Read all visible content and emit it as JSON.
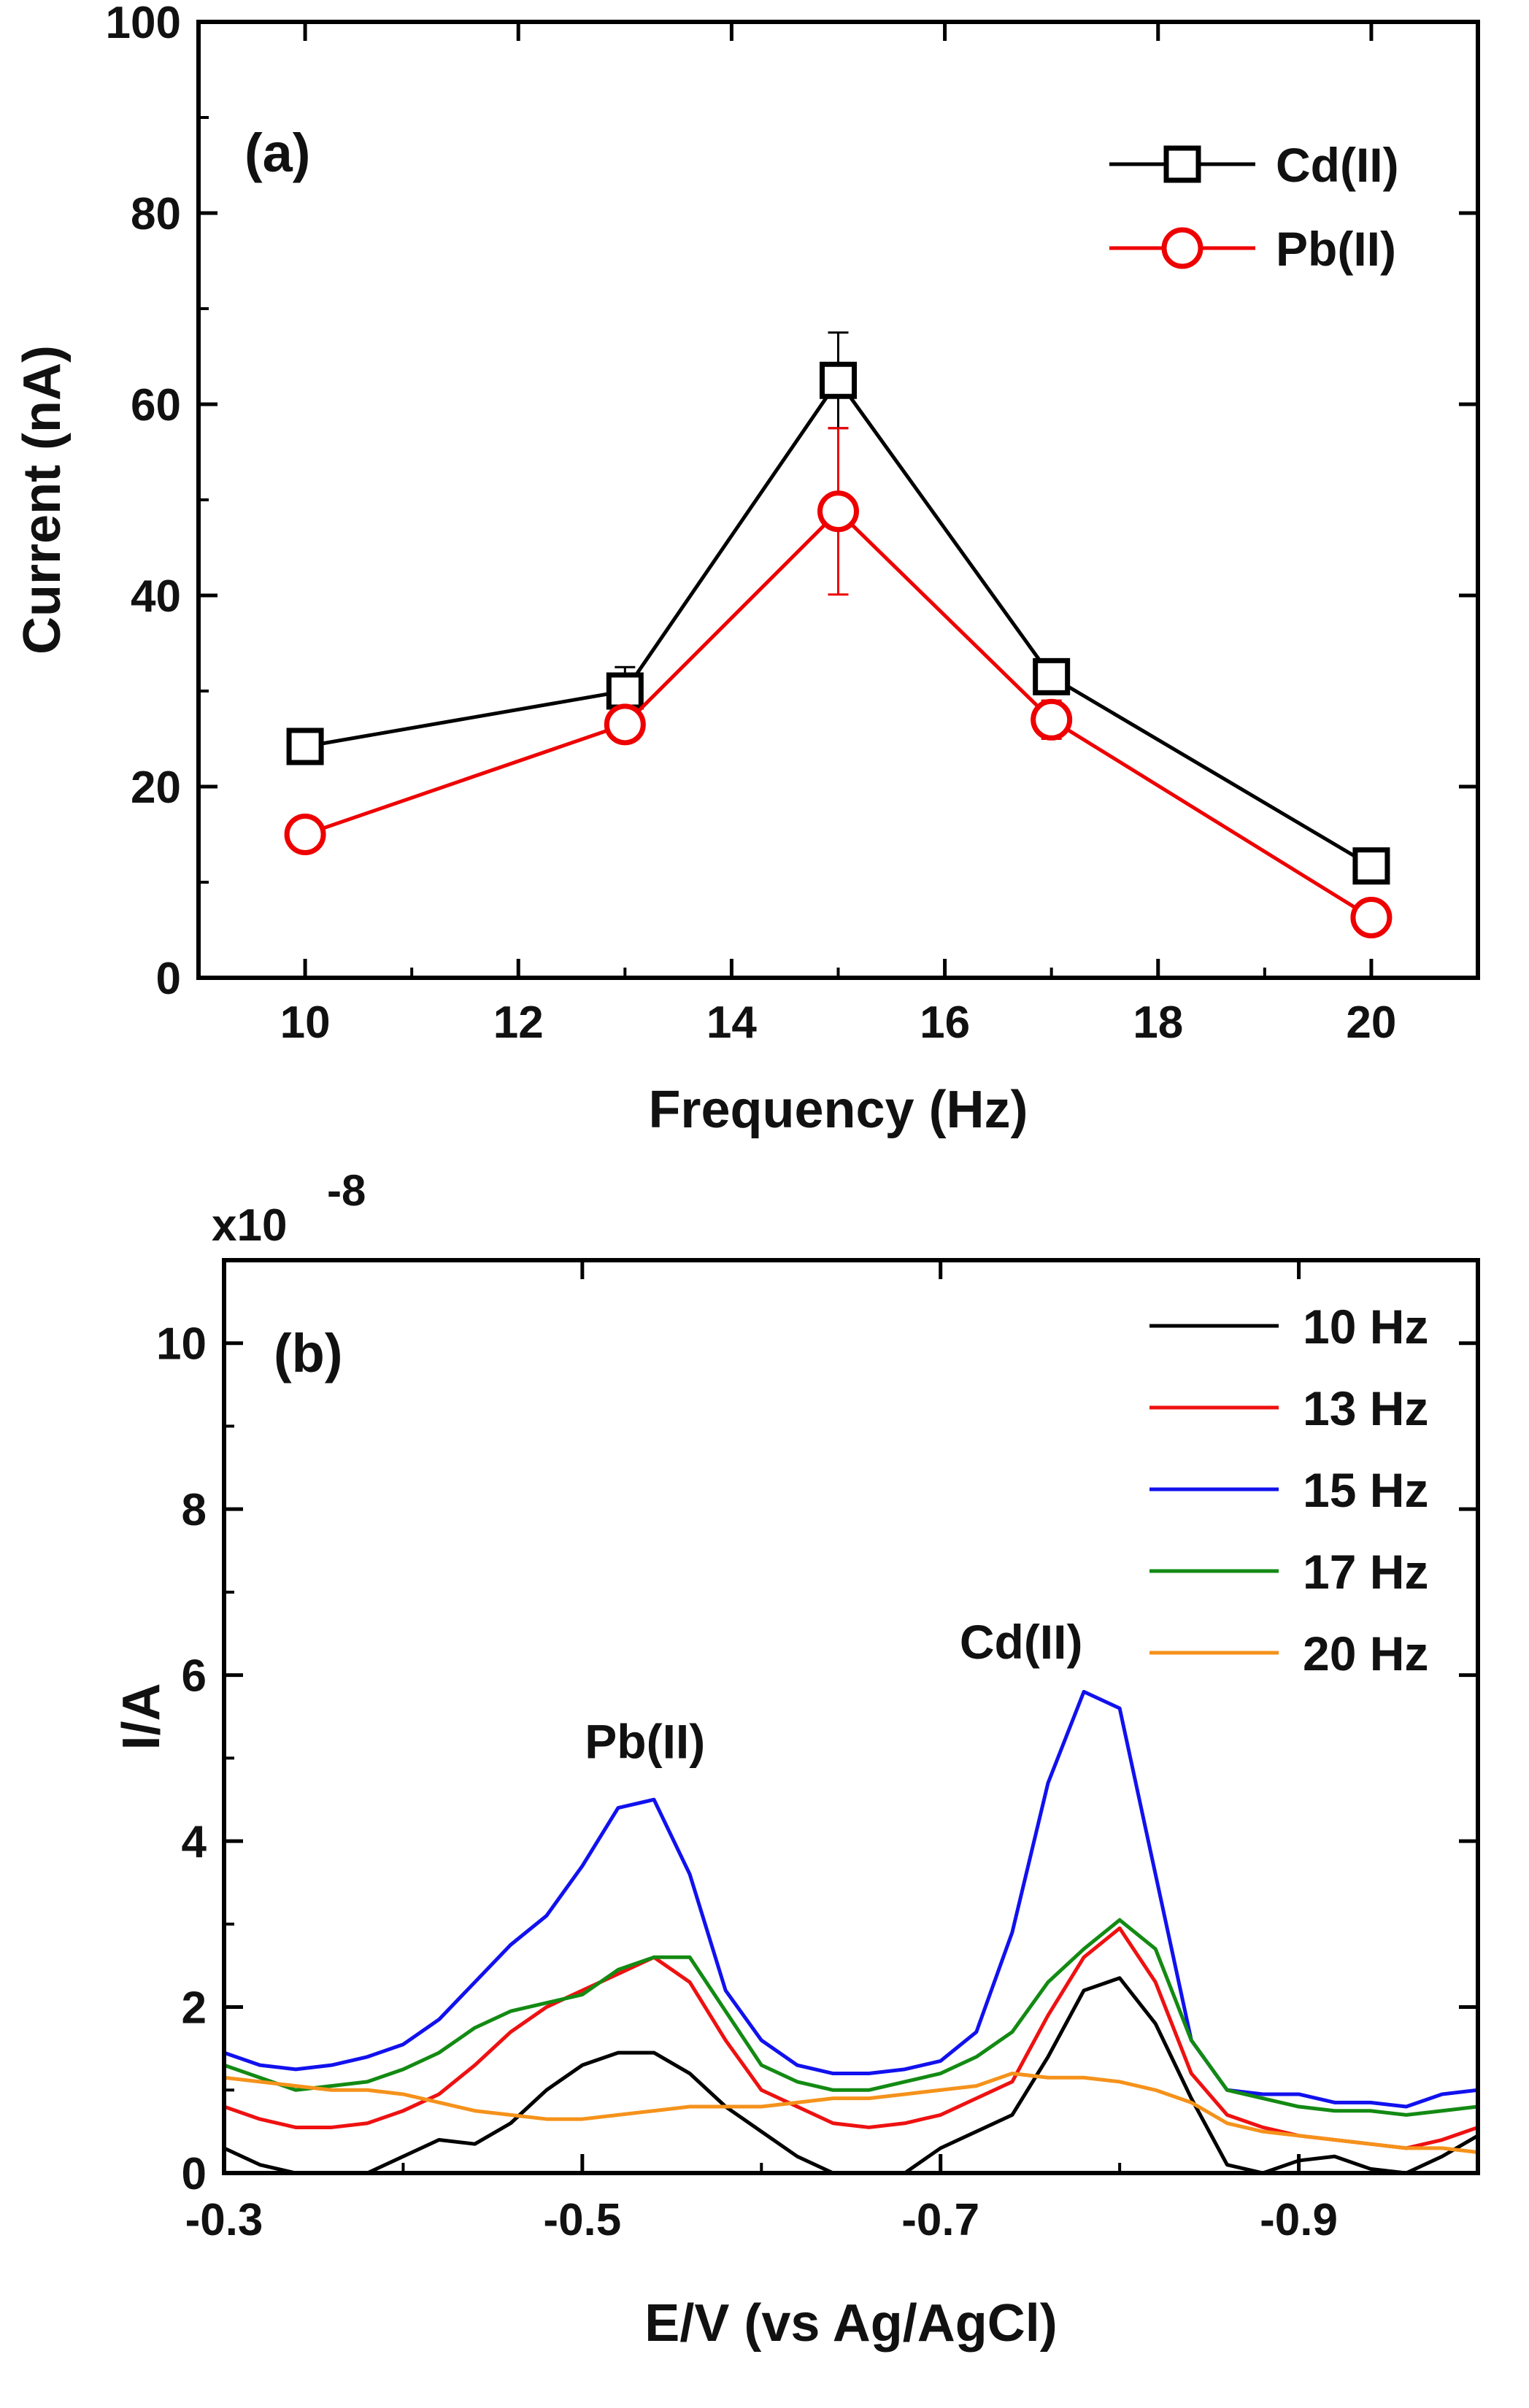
{
  "chart_data": [
    {
      "type": "line",
      "panel_label": "(a)",
      "xlabel": "Frequency (Hz)",
      "ylabel": "Current (nA)",
      "xlim": [
        9,
        21
      ],
      "ylim": [
        0,
        100
      ],
      "xticks": [
        10,
        12,
        14,
        16,
        18,
        20
      ],
      "yticks": [
        0,
        20,
        40,
        60,
        80,
        100
      ],
      "grid": false,
      "legend_position": "top-right",
      "x": [
        10,
        13,
        15,
        17,
        20
      ],
      "series": [
        {
          "name": "Cd(II)",
          "color": "#000000",
          "marker": "square",
          "values": [
            24.2,
            30.0,
            62.5,
            31.5,
            11.7
          ],
          "errors": [
            1.5,
            2.5,
            5.0,
            1.5,
            1.0
          ]
        },
        {
          "name": "Pb(II)",
          "color": "#ee0000",
          "marker": "circle",
          "values": [
            15.0,
            26.5,
            48.8,
            27.0,
            6.3
          ],
          "errors": [
            1.0,
            1.5,
            8.7,
            2.0,
            1.2
          ]
        }
      ]
    },
    {
      "type": "line",
      "panel_label": "(b)",
      "xlabel": "E/V (vs Ag/AgCl)",
      "ylabel": "I/A",
      "y_multiplier": "x10",
      "y_multiplier_exp": "-8",
      "xlim": [
        -0.3,
        -1.0
      ],
      "ylim": [
        0,
        11
      ],
      "xticks": [
        -0.3,
        -0.5,
        -0.7,
        -0.9
      ],
      "xtick_labels": [
        "-0.3",
        "-0.5",
        "-0.7",
        "-0.9"
      ],
      "yticks": [
        0,
        2,
        4,
        6,
        8,
        10
      ],
      "grid": false,
      "legend_position": "top-right",
      "annotations": [
        {
          "text": "Pb(II)",
          "x": -0.535,
          "y": 5.0
        },
        {
          "text": "Cd(II)",
          "x": -0.745,
          "y": 6.2
        }
      ],
      "series": [
        {
          "name": "10 Hz",
          "color": "#000000",
          "x": [
            -0.3,
            -0.32,
            -0.34,
            -0.36,
            -0.38,
            -0.4,
            -0.42,
            -0.44,
            -0.46,
            -0.48,
            -0.5,
            -0.52,
            -0.54,
            -0.56,
            -0.58,
            -0.6,
            -0.62,
            -0.64,
            -0.66,
            -0.68,
            -0.7,
            -0.72,
            -0.74,
            -0.76,
            -0.78,
            -0.8,
            -0.82,
            -0.84,
            -0.86,
            -0.88,
            -0.9,
            -0.92,
            -0.94,
            -0.96,
            -0.98,
            -1.0
          ],
          "values": [
            0.3,
            0.1,
            0.0,
            0.0,
            0.0,
            0.2,
            0.4,
            0.35,
            0.6,
            1.0,
            1.3,
            1.45,
            1.45,
            1.2,
            0.8,
            0.5,
            0.2,
            0.0,
            0.0,
            0.0,
            0.3,
            0.5,
            0.7,
            1.4,
            2.2,
            2.35,
            1.8,
            0.9,
            0.1,
            0.0,
            0.15,
            0.2,
            0.05,
            0.0,
            0.2,
            0.45
          ]
        },
        {
          "name": "13 Hz",
          "color": "#ee1111",
          "x": [
            -0.3,
            -0.32,
            -0.34,
            -0.36,
            -0.38,
            -0.4,
            -0.42,
            -0.44,
            -0.46,
            -0.48,
            -0.5,
            -0.52,
            -0.54,
            -0.56,
            -0.58,
            -0.6,
            -0.62,
            -0.64,
            -0.66,
            -0.68,
            -0.7,
            -0.72,
            -0.74,
            -0.76,
            -0.78,
            -0.8,
            -0.82,
            -0.84,
            -0.86,
            -0.88,
            -0.9,
            -0.92,
            -0.94,
            -0.96,
            -0.98,
            -1.0
          ],
          "values": [
            0.8,
            0.65,
            0.55,
            0.55,
            0.6,
            0.75,
            0.95,
            1.3,
            1.7,
            2.0,
            2.2,
            2.4,
            2.6,
            2.3,
            1.6,
            1.0,
            0.8,
            0.6,
            0.55,
            0.6,
            0.7,
            0.9,
            1.1,
            1.9,
            2.6,
            2.95,
            2.3,
            1.2,
            0.7,
            0.55,
            0.45,
            0.4,
            0.35,
            0.3,
            0.4,
            0.55
          ]
        },
        {
          "name": "15 Hz",
          "color": "#1111ee",
          "x": [
            -0.3,
            -0.32,
            -0.34,
            -0.36,
            -0.38,
            -0.4,
            -0.42,
            -0.44,
            -0.46,
            -0.48,
            -0.5,
            -0.52,
            -0.54,
            -0.56,
            -0.58,
            -0.6,
            -0.62,
            -0.64,
            -0.66,
            -0.68,
            -0.7,
            -0.72,
            -0.74,
            -0.76,
            -0.78,
            -0.8,
            -0.82,
            -0.84,
            -0.86,
            -0.88,
            -0.9,
            -0.92,
            -0.94,
            -0.96,
            -0.98,
            -1.0
          ],
          "values": [
            1.45,
            1.3,
            1.25,
            1.3,
            1.4,
            1.55,
            1.85,
            2.3,
            2.75,
            3.1,
            3.7,
            4.4,
            4.5,
            3.6,
            2.2,
            1.6,
            1.3,
            1.2,
            1.2,
            1.25,
            1.35,
            1.7,
            2.9,
            4.7,
            5.8,
            5.6,
            3.6,
            1.6,
            1.0,
            0.95,
            0.95,
            0.85,
            0.85,
            0.8,
            0.95,
            1.0
          ]
        },
        {
          "name": "17 Hz",
          "color": "#138a13",
          "x": [
            -0.3,
            -0.32,
            -0.34,
            -0.36,
            -0.38,
            -0.4,
            -0.42,
            -0.44,
            -0.46,
            -0.48,
            -0.5,
            -0.52,
            -0.54,
            -0.56,
            -0.58,
            -0.6,
            -0.62,
            -0.64,
            -0.66,
            -0.68,
            -0.7,
            -0.72,
            -0.74,
            -0.76,
            -0.78,
            -0.8,
            -0.82,
            -0.84,
            -0.86,
            -0.88,
            -0.9,
            -0.92,
            -0.94,
            -0.96,
            -0.98,
            -1.0
          ],
          "values": [
            1.3,
            1.15,
            1.0,
            1.05,
            1.1,
            1.25,
            1.45,
            1.75,
            1.95,
            2.05,
            2.15,
            2.45,
            2.6,
            2.6,
            1.95,
            1.3,
            1.1,
            1.0,
            1.0,
            1.1,
            1.2,
            1.4,
            1.7,
            2.3,
            2.7,
            3.05,
            2.7,
            1.6,
            1.0,
            0.9,
            0.8,
            0.75,
            0.75,
            0.7,
            0.75,
            0.8
          ]
        },
        {
          "name": "20 Hz",
          "color": "#f5921b",
          "x": [
            -0.3,
            -0.32,
            -0.34,
            -0.36,
            -0.38,
            -0.4,
            -0.42,
            -0.44,
            -0.46,
            -0.48,
            -0.5,
            -0.52,
            -0.54,
            -0.56,
            -0.58,
            -0.6,
            -0.62,
            -0.64,
            -0.66,
            -0.68,
            -0.7,
            -0.72,
            -0.74,
            -0.76,
            -0.78,
            -0.8,
            -0.82,
            -0.84,
            -0.86,
            -0.88,
            -0.9,
            -0.92,
            -0.94,
            -0.96,
            -0.98,
            -1.0
          ],
          "values": [
            1.15,
            1.1,
            1.05,
            1.0,
            1.0,
            0.95,
            0.85,
            0.75,
            0.7,
            0.65,
            0.65,
            0.7,
            0.75,
            0.8,
            0.8,
            0.8,
            0.85,
            0.9,
            0.9,
            0.95,
            1.0,
            1.05,
            1.2,
            1.15,
            1.15,
            1.1,
            1.0,
            0.85,
            0.6,
            0.5,
            0.45,
            0.4,
            0.35,
            0.3,
            0.3,
            0.25
          ]
        }
      ]
    }
  ]
}
